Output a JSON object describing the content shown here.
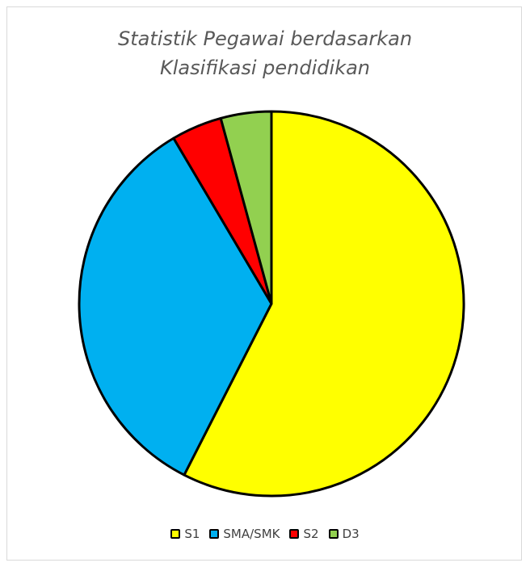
{
  "chart_data": {
    "type": "pie",
    "title": "Statistik Pegawai berdasarkan\nKlasifikasi pendidikan",
    "categories": [
      "S1",
      "SMA/SMK",
      "S2",
      "D3"
    ],
    "values": [
      57.5,
      34,
      4.25,
      4.25
    ],
    "colors": [
      "#FFFF00",
      "#00B0F0",
      "#FF0000",
      "#92D050"
    ],
    "legend": "bottom",
    "start_angle_deg": 0,
    "direction": "clockwise"
  }
}
